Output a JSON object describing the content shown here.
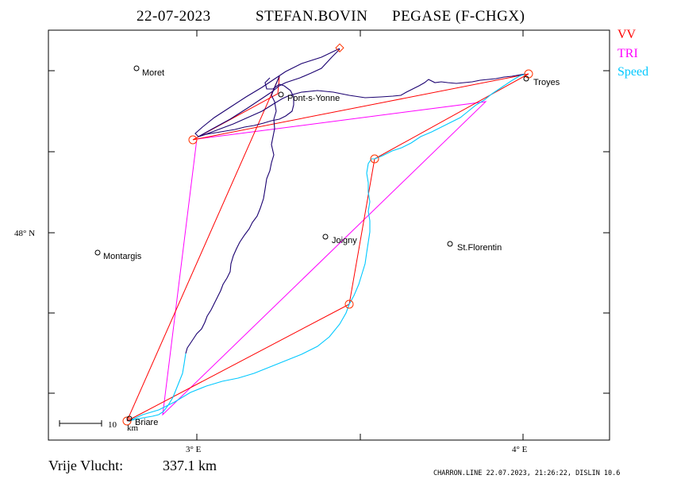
{
  "header": {
    "date": "22-07-2023",
    "pilot": "STEFAN.BOVIN",
    "glider": "PEGASE (F-CHGX)"
  },
  "legend": {
    "items": [
      {
        "label": "VV",
        "color": "#ff0000"
      },
      {
        "label": "TRI",
        "color": "#ff00ff"
      },
      {
        "label": "Speed",
        "color": "#00c8ff"
      }
    ]
  },
  "colors": {
    "track": "#1a0070",
    "speed_track": "#00c8ff",
    "vv_line": "#ff0000",
    "tri_line": "#ff00ff",
    "frame": "#000000"
  },
  "axes": {
    "lat_label": "48° N",
    "lon_labels": [
      "3° E",
      "4° E"
    ]
  },
  "cities": [
    {
      "name": "Moret"
    },
    {
      "name": "Troyes"
    },
    {
      "name": "Pont-s-Yonne"
    },
    {
      "name": "Joigny"
    },
    {
      "name": "Montargis"
    },
    {
      "name": "St.Florentin"
    },
    {
      "name": "Briare"
    }
  ],
  "scale": {
    "value": "10",
    "unit": "km"
  },
  "footer": {
    "distance_label": "Vrije Vlucht:",
    "distance_value": "337.1 km",
    "credit": "CHARRON.LINE 22.07.2023, 21:26:22, DISLIN 10.6"
  }
}
